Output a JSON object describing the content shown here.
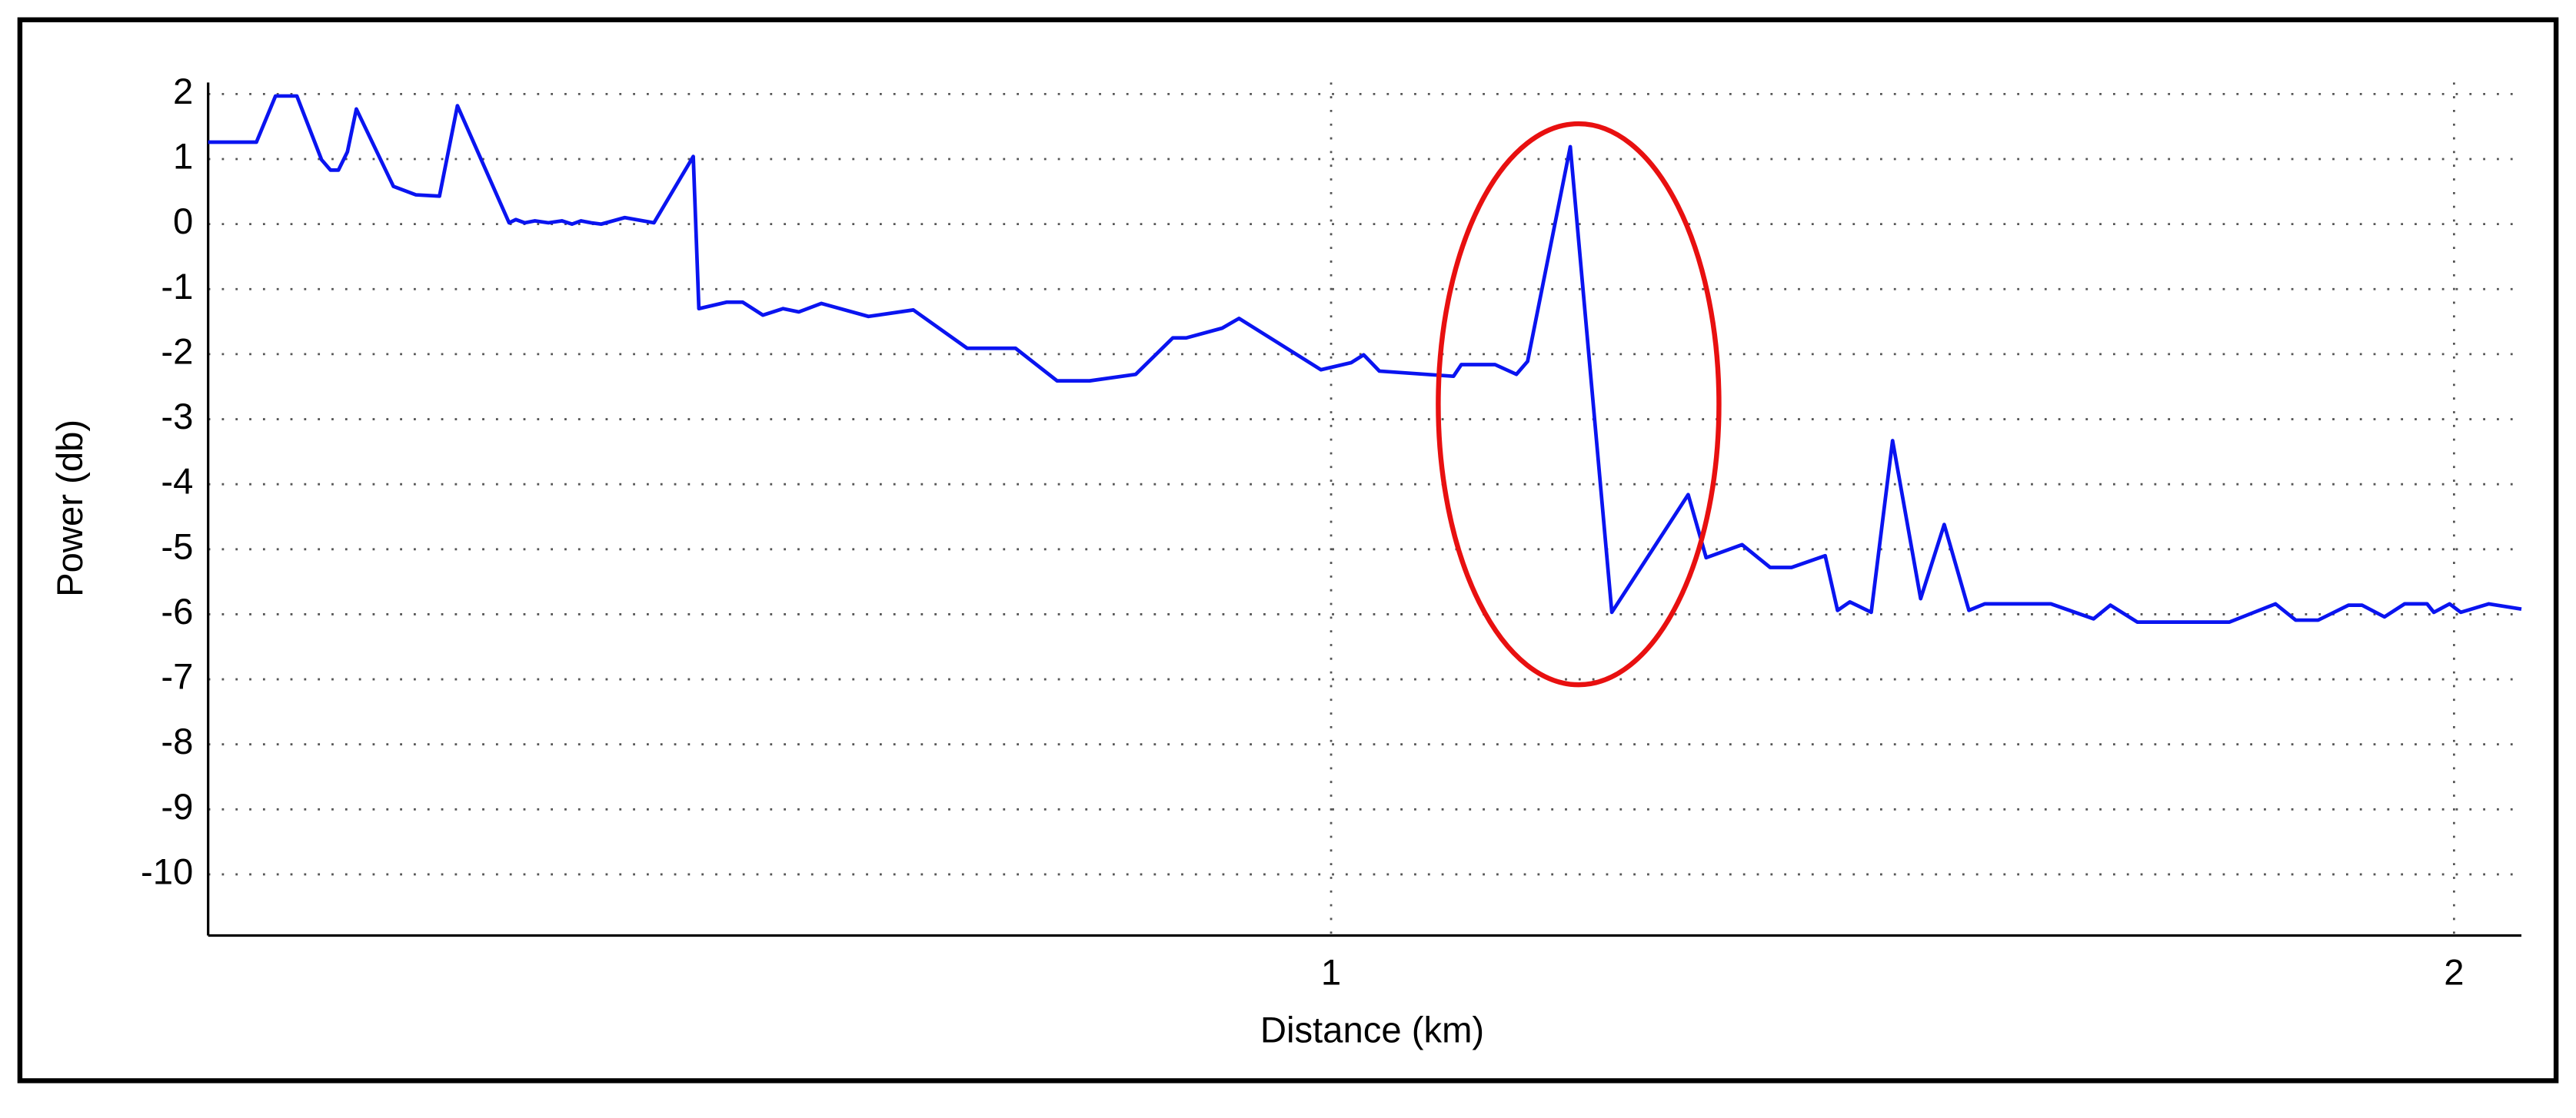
{
  "chart_data": {
    "type": "line",
    "x_label": "Distance (km)",
    "y_label": "Power (db)",
    "x": [
      0,
      0.043,
      0.06,
      0.079,
      0.101,
      0.109,
      0.116,
      0.124,
      0.132,
      0.165,
      0.185,
      0.206,
      0.222,
      0.268,
      0.274,
      0.282,
      0.291,
      0.303,
      0.315,
      0.324,
      0.332,
      0.341,
      0.35,
      0.371,
      0.397,
      0.432,
      0.437,
      0.462,
      0.476,
      0.494,
      0.512,
      0.526,
      0.546,
      0.588,
      0.628,
      0.676,
      0.719,
      0.756,
      0.785,
      0.826,
      0.859,
      0.871,
      0.903,
      0.918,
      0.991,
      1.018,
      1.029,
      1.043,
      1.109,
      1.116,
      1.146,
      1.165,
      1.175,
      1.213,
      1.25,
      1.318,
      1.334,
      1.366,
      1.391,
      1.41,
      1.44,
      1.451,
      1.462,
      1.481,
      1.5,
      1.525,
      1.546,
      1.568,
      1.582,
      1.641,
      1.679,
      1.694,
      1.718,
      1.8,
      1.841,
      1.859,
      1.879,
      1.906,
      1.918,
      1.938,
      1.956,
      1.976,
      1.982,
      1.996,
      2.006,
      2.031,
      2.06
    ],
    "series": [
      {
        "color": "#0a14f0",
        "values": [
          1.26,
          1.26,
          1.97,
          1.97,
          0.99,
          0.83,
          0.83,
          1.11,
          1.77,
          0.58,
          0.45,
          0.43,
          1.82,
          0.02,
          0.07,
          0.02,
          0.05,
          0.02,
          0.05,
          0,
          0.05,
          0.02,
          0,
          0.1,
          0.02,
          1.04,
          -1.3,
          -1.2,
          -1.2,
          -1.4,
          -1.3,
          -1.35,
          -1.22,
          -1.42,
          -1.32,
          -1.91,
          -1.91,
          -2.41,
          -2.41,
          -2.31,
          -1.75,
          -1.75,
          -1.6,
          -1.45,
          -2.24,
          -2.13,
          -2.01,
          -2.26,
          -2.34,
          -2.16,
          -2.16,
          -2.31,
          -2.11,
          1.19,
          -5.97,
          -4.16,
          -5.13,
          -4.93,
          -5.28,
          -5.28,
          -5.1,
          -5.94,
          -5.81,
          -5.97,
          -3.33,
          -5.76,
          -4.62,
          -5.94,
          -5.84,
          -5.84,
          -6.07,
          -5.86,
          -6.12,
          -6.12,
          -5.84,
          -6.09,
          -6.09,
          -5.86,
          -5.86,
          -6.04,
          -5.84,
          -5.84,
          -5.97,
          -5.84,
          -5.97,
          -5.84,
          -5.92
        ]
      }
    ],
    "xlim": [
      0,
      2.06
    ],
    "xticks": [
      1,
      2
    ],
    "ylim": [
      -10.94,
      2
    ],
    "yticks": [
      -10,
      -9,
      -8,
      -7,
      -6,
      -5,
      -4,
      -3,
      -2,
      -1,
      0,
      1,
      2
    ],
    "grid": true
  }
}
